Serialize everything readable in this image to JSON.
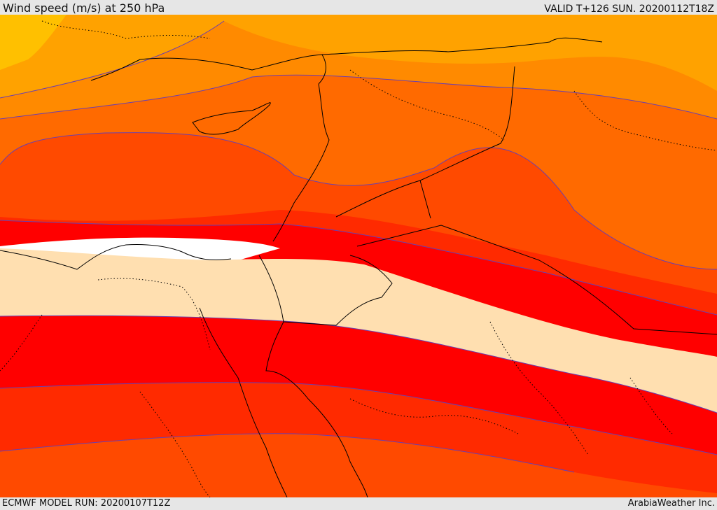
{
  "header": {
    "title": "Wind speed (m/s) at 250 hPa",
    "valid": "VALID T+126 SUN. 20200112T18Z"
  },
  "footer": {
    "model_run": "ECMWF MODEL RUN: 20200107T12Z",
    "credit": "ArabiaWeather Inc."
  },
  "colors": {
    "band_orange_light": "#ffa200",
    "band_orange_top": "#ffc000",
    "band_orange": "#ff8a00",
    "band_orange_dark": "#ff6a00",
    "band_red_orange": "#ff4a00",
    "band_red_light": "#ff2a00",
    "band_red": "#ff0000",
    "band_weak": "#ffdfb0",
    "band_calm": "#ffffff",
    "contour_line": "#6a3fb0",
    "coastline": "#000000"
  }
}
